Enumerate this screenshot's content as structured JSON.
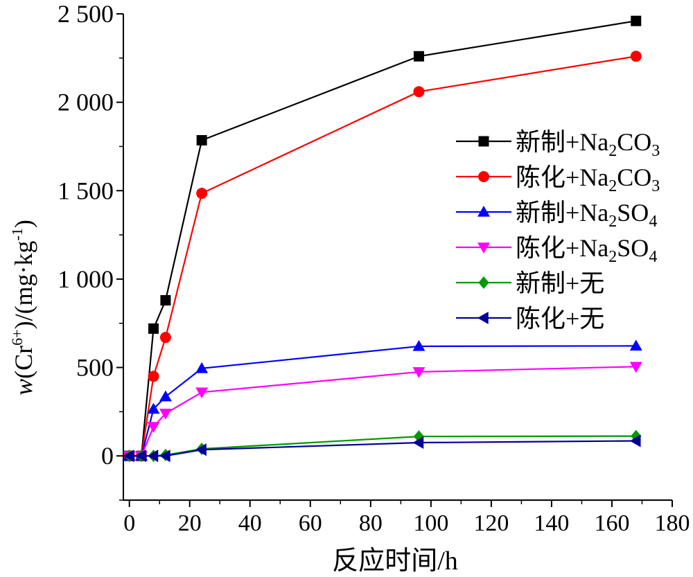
{
  "chart_data": {
    "type": "line",
    "xlabel": "反应时间/h",
    "ylabel": {
      "w": "w",
      "open": "(Cr",
      "sup": "6+",
      "rest": ")/(mg·kg",
      "sup2": "-1",
      "close": ")"
    },
    "xlim": [
      -2,
      180
    ],
    "ylim": [
      -250,
      2500
    ],
    "xticks": [
      0,
      20,
      40,
      60,
      80,
      100,
      120,
      140,
      160,
      180
    ],
    "yticks": [
      0,
      500,
      1000,
      1500,
      2000,
      2500
    ],
    "ytick_labels": [
      "0",
      "500",
      "1 000",
      "1 500",
      "2 000",
      "2 500"
    ],
    "grid": false,
    "legend_position": "right",
    "series": [
      {
        "name": "新制+Na₂CO₃",
        "legend": {
          "prefix": "新制+Na",
          "sub": "2",
          "mid": "CO",
          "sub2": "3"
        },
        "color": "#000000",
        "marker": "square",
        "x": [
          0,
          4,
          8,
          12,
          24,
          96,
          168
        ],
        "y": [
          0,
          0,
          720,
          880,
          1785,
          2260,
          2460
        ]
      },
      {
        "name": "陈化+Na₂CO₃",
        "legend": {
          "prefix": "陈化+Na",
          "sub": "2",
          "mid": "CO",
          "sub2": "3"
        },
        "color": "#ff0000",
        "marker": "circle",
        "x": [
          0,
          4,
          8,
          12,
          24,
          96,
          168
        ],
        "y": [
          0,
          0,
          450,
          670,
          1485,
          2060,
          2260
        ]
      },
      {
        "name": "新制+Na₂SO₄",
        "legend": {
          "prefix": "新制+Na",
          "sub": "2",
          "mid": "SO",
          "sub2": "4"
        },
        "color": "#0000ff",
        "marker": "triangle-up",
        "x": [
          0,
          4,
          8,
          12,
          24,
          96,
          168
        ],
        "y": [
          0,
          0,
          265,
          335,
          495,
          620,
          622
        ]
      },
      {
        "name": "陈化+Na₂SO₄",
        "legend": {
          "prefix": "陈化+Na",
          "sub": "2",
          "mid": "SO",
          "sub2": "4"
        },
        "color": "#ff00ff",
        "marker": "triangle-down",
        "x": [
          0,
          4,
          8,
          12,
          24,
          96,
          168
        ],
        "y": [
          0,
          0,
          165,
          240,
          360,
          475,
          505
        ]
      },
      {
        "name": "新制+无",
        "legend": {
          "prefix": "新制+无",
          "sub": "",
          "mid": "",
          "sub2": ""
        },
        "color": "#009900",
        "marker": "diamond",
        "x": [
          0,
          4,
          8,
          12,
          24,
          96,
          168
        ],
        "y": [
          0,
          0,
          0,
          5,
          40,
          110,
          112
        ]
      },
      {
        "name": "陈化+无",
        "legend": {
          "prefix": "陈化+无",
          "sub": "",
          "mid": "",
          "sub2": ""
        },
        "color": "#000099",
        "marker": "triangle-left",
        "x": [
          0,
          4,
          8,
          12,
          24,
          96,
          168
        ],
        "y": [
          0,
          0,
          0,
          0,
          35,
          75,
          85
        ]
      }
    ]
  }
}
